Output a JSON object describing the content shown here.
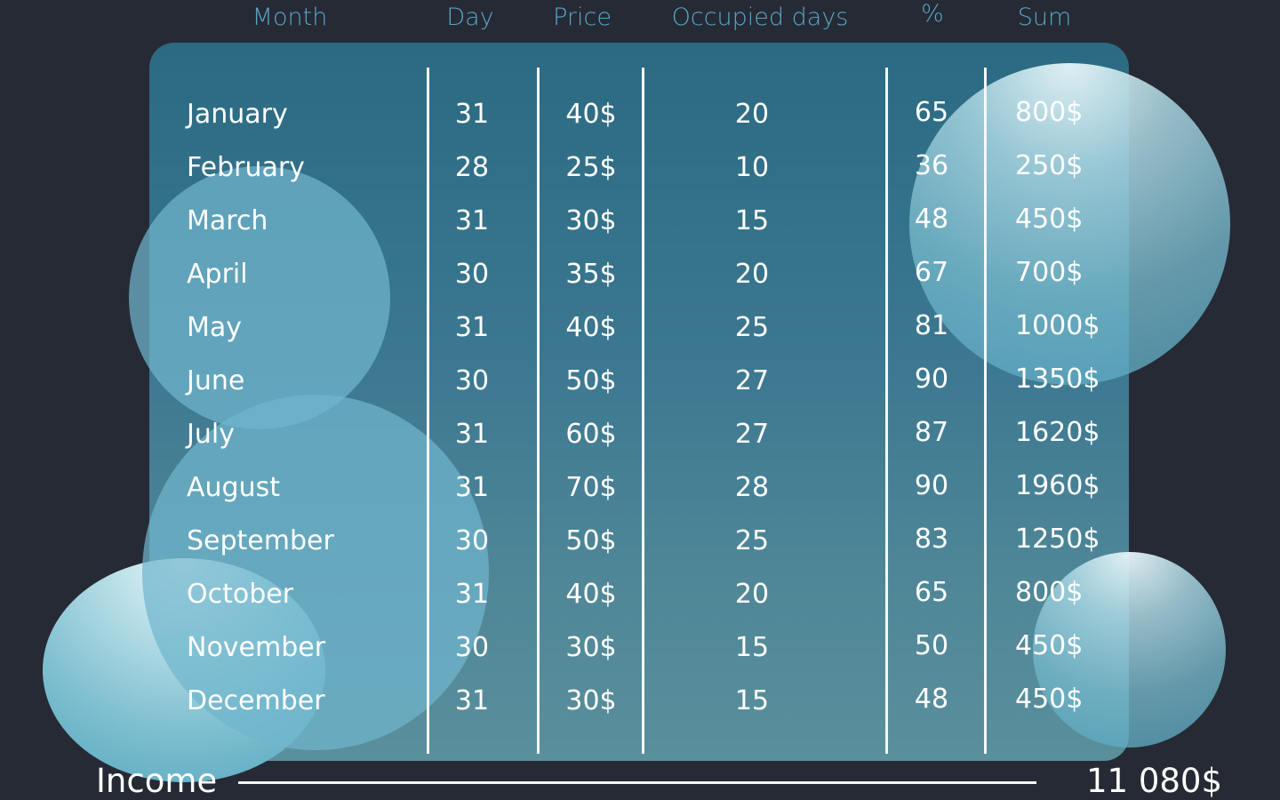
{
  "headers": {
    "month": "Month",
    "day": "Day",
    "price": "Price",
    "occupied": "Occupied days",
    "percent": "%",
    "sum": "Sum"
  },
  "rows": [
    {
      "month": "January",
      "day": "31",
      "price": "40$",
      "occupied": "20",
      "percent": "65",
      "sum": "800$"
    },
    {
      "month": "February",
      "day": "28",
      "price": "25$",
      "occupied": "10",
      "percent": "36",
      "sum": "250$"
    },
    {
      "month": "March",
      "day": "31",
      "price": "30$",
      "occupied": "15",
      "percent": "48",
      "sum": "450$"
    },
    {
      "month": "April",
      "day": "30",
      "price": "35$",
      "occupied": "20",
      "percent": "67",
      "sum": "700$"
    },
    {
      "month": "May",
      "day": "31",
      "price": "40$",
      "occupied": "25",
      "percent": "81",
      "sum": "1000$"
    },
    {
      "month": "June",
      "day": "30",
      "price": "50$",
      "occupied": "27",
      "percent": "90",
      "sum": "1350$"
    },
    {
      "month": "July",
      "day": "31",
      "price": "60$",
      "occupied": "27",
      "percent": "87",
      "sum": "1620$"
    },
    {
      "month": "August",
      "day": "31",
      "price": "70$",
      "occupied": "28",
      "percent": "90",
      "sum": "1960$"
    },
    {
      "month": "September",
      "day": "30",
      "price": "50$",
      "occupied": "25",
      "percent": "83",
      "sum": "1250$"
    },
    {
      "month": "October",
      "day": "31",
      "price": "40$",
      "occupied": "20",
      "percent": "65",
      "sum": "800$"
    },
    {
      "month": "November",
      "day": "30",
      "price": "30$",
      "occupied": "15",
      "percent": "50",
      "sum": "450$"
    },
    {
      "month": "December",
      "day": "31",
      "price": "30$",
      "occupied": "15",
      "percent": "48",
      "sum": "450$"
    }
  ],
  "income": {
    "label": "Income",
    "total": "11 080$"
  },
  "colors": {
    "background": "#252a35",
    "header_text": "#5aa6c6",
    "panel_top": "#2b6a82",
    "panel_bottom": "#5a8f9c",
    "bubble": "#70b6cd",
    "text": "#ffffff"
  }
}
